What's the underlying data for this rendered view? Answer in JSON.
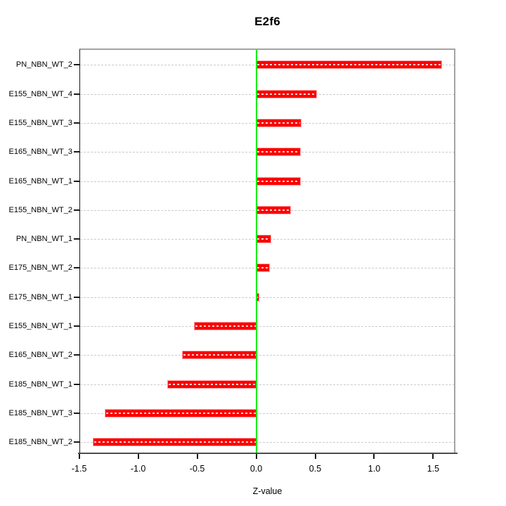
{
  "chart_data": {
    "type": "bar",
    "orientation": "horizontal",
    "title": "E2f6",
    "xlabel": "Z-value",
    "ylabel": "",
    "categories": [
      "PN_NBN_WT_2",
      "E155_NBN_WT_4",
      "E155_NBN_WT_3",
      "E165_NBN_WT_3",
      "E165_NBN_WT_1",
      "E155_NBN_WT_2",
      "PN_NBN_WT_1",
      "E175_NBN_WT_2",
      "E175_NBN_WT_1",
      "E155_NBN_WT_1",
      "E165_NBN_WT_2",
      "E185_NBN_WT_1",
      "E185_NBN_WT_3",
      "E185_NBN_WT_2"
    ],
    "values": [
      1.57,
      0.51,
      0.38,
      0.37,
      0.37,
      0.29,
      0.12,
      0.11,
      0.02,
      -0.52,
      -0.62,
      -0.75,
      -1.28,
      -1.38
    ],
    "x_ticks": [
      -1.5,
      -1.0,
      -0.5,
      0.0,
      0.5,
      1.0,
      1.5
    ],
    "x_tick_labels": [
      "-1.5",
      "-1.0",
      "-0.5",
      "0.0",
      "0.5",
      "1.0",
      "1.5"
    ],
    "xlim": [
      -1.498,
      1.688
    ],
    "zero_reference_line": 0.0,
    "grid": "dashed horizontal line per category row",
    "legend": "none",
    "colors": {
      "bar": "#fb0000",
      "bar_dash_overlay": "#ffd0d0",
      "zero_line": "#00ef00",
      "grid_line": "#cbcbcb",
      "frame_top_right": "#a3a3a3",
      "axis_line": "#4d4d4d",
      "text": "#000000",
      "background": "#ffffff"
    }
  }
}
